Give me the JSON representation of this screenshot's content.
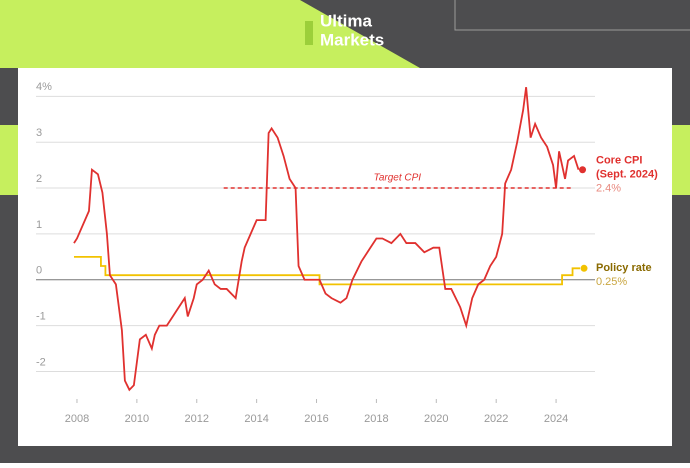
{
  "header": {
    "brand_top": "Ultima",
    "brand_bottom": "Markets"
  },
  "chart_data": {
    "type": "line",
    "xlim": [
      2007.5,
      2025.3
    ],
    "xticks": [
      2008,
      2010,
      2012,
      2014,
      2016,
      2018,
      2020,
      2022,
      2024
    ],
    "ylim": [
      -2.6,
      4.4
    ],
    "yticks": [
      {
        "value": 4,
        "label": "4%"
      },
      3,
      2,
      1,
      0,
      -1,
      -2
    ],
    "grid": true,
    "series": [
      {
        "name": "Core CPI",
        "note": "(Sept. 2024)",
        "end_label": "2.4%",
        "color": "#e0312f",
        "label_color": "#e8897f",
        "x": [
          2007.9,
          2008.0,
          2008.2,
          2008.4,
          2008.5,
          2008.7,
          2008.85,
          2009.0,
          2009.1,
          2009.3,
          2009.5,
          2009.6,
          2009.75,
          2009.9,
          2010.0,
          2010.1,
          2010.3,
          2010.5,
          2010.6,
          2010.75,
          2011.0,
          2011.2,
          2011.4,
          2011.6,
          2011.7,
          2011.9,
          2012.0,
          2012.2,
          2012.4,
          2012.6,
          2012.8,
          2013.0,
          2013.3,
          2013.5,
          2013.6,
          2013.8,
          2014.0,
          2014.3,
          2014.4,
          2014.5,
          2014.7,
          2014.9,
          2015.1,
          2015.3,
          2015.4,
          2015.6,
          2015.9,
          2016.1,
          2016.3,
          2016.5,
          2016.8,
          2017.0,
          2017.2,
          2017.5,
          2017.8,
          2018.0,
          2018.2,
          2018.5,
          2018.8,
          2019.0,
          2019.3,
          2019.6,
          2019.9,
          2020.1,
          2020.3,
          2020.5,
          2020.8,
          2021.0,
          2021.2,
          2021.4,
          2021.6,
          2021.8,
          2022.0,
          2022.2,
          2022.3,
          2022.5,
          2022.7,
          2022.9,
          2023.0,
          2023.15,
          2023.3,
          2023.5,
          2023.7,
          2023.9,
          2024.0,
          2024.1,
          2024.3,
          2024.4,
          2024.6,
          2024.75
        ],
        "values": [
          0.8,
          0.9,
          1.2,
          1.5,
          2.4,
          2.3,
          1.9,
          1.0,
          0.1,
          -0.1,
          -1.1,
          -2.2,
          -2.4,
          -2.3,
          -1.8,
          -1.3,
          -1.2,
          -1.5,
          -1.2,
          -1.0,
          -1.0,
          -0.8,
          -0.6,
          -0.4,
          -0.8,
          -0.4,
          -0.1,
          0.0,
          0.2,
          -0.1,
          -0.2,
          -0.2,
          -0.4,
          0.4,
          0.7,
          1.0,
          1.3,
          1.3,
          3.2,
          3.3,
          3.1,
          2.7,
          2.2,
          2.0,
          0.3,
          0.0,
          0.0,
          0.0,
          -0.3,
          -0.4,
          -0.5,
          -0.4,
          0.0,
          0.4,
          0.7,
          0.9,
          0.9,
          0.8,
          1.0,
          0.8,
          0.8,
          0.6,
          0.7,
          0.7,
          -0.2,
          -0.2,
          -0.6,
          -1.0,
          -0.4,
          -0.1,
          0.0,
          0.3,
          0.5,
          1.0,
          2.1,
          2.4,
          3.0,
          3.7,
          4.2,
          3.1,
          3.4,
          3.1,
          2.9,
          2.5,
          2.0,
          2.8,
          2.2,
          2.6,
          2.7,
          2.4
        ]
      },
      {
        "name": "Policy rate",
        "end_label": "0.25%",
        "color": "#f2c200",
        "name_color": "#8a6a00",
        "label_color": "#c9a640",
        "x": [
          2007.9,
          2008.8,
          2008.8,
          2008.95,
          2008.95,
          2016.1,
          2016.1,
          2024.2,
          2024.2,
          2024.55,
          2024.55,
          2024.8
        ],
        "values": [
          0.5,
          0.5,
          0.3,
          0.3,
          0.1,
          0.1,
          -0.1,
          -0.1,
          0.1,
          0.1,
          0.25,
          0.25
        ]
      }
    ],
    "annotations": [
      {
        "text": "Target CPI",
        "value": 2,
        "x": [
          2012.9,
          2024.5
        ],
        "color": "#e0312f"
      }
    ]
  }
}
